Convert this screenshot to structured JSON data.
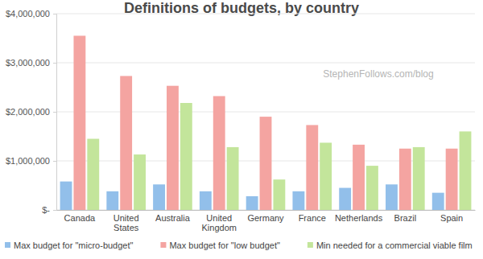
{
  "chart_data": {
    "type": "bar",
    "title": "Definitions of budgets, by country",
    "annotations": [
      "StephenFollows.com/blog"
    ],
    "categories": [
      "Canada",
      "United States",
      "Australia",
      "United Kingdom",
      "Germany",
      "France",
      "Netherlands",
      "Brazil",
      "Spain"
    ],
    "series": [
      {
        "name": "Max budget for \"micro-budget\"",
        "color": "#92bfea",
        "values": [
          580000,
          380000,
          520000,
          380000,
          280000,
          380000,
          450000,
          520000,
          350000
        ]
      },
      {
        "name": "Max budget for \"low budget\"",
        "color": "#f4a4a1",
        "values": [
          3550000,
          2730000,
          2530000,
          2320000,
          1900000,
          1730000,
          1330000,
          1250000,
          1250000
        ]
      },
      {
        "name": "Min needed for a commercial viable film",
        "color": "#c3e59b",
        "values": [
          1450000,
          1130000,
          2180000,
          1280000,
          620000,
          1370000,
          900000,
          1280000,
          1600000
        ]
      }
    ],
    "ylim": [
      0,
      4000000
    ],
    "yticks": [
      {
        "value": 0,
        "label": "$-"
      },
      {
        "value": 1000000,
        "label": "$1,000,000"
      },
      {
        "value": 2000000,
        "label": "$2,000,000"
      },
      {
        "value": 3000000,
        "label": "$3,000,000"
      },
      {
        "value": 4000000,
        "label": "$4,000,000"
      }
    ],
    "grid": true,
    "legend": "bottom"
  }
}
